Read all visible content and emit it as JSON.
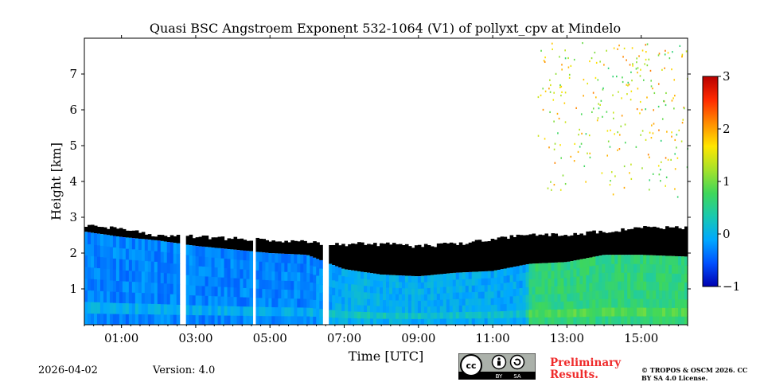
{
  "chart_data": {
    "type": "heatmap",
    "title": "Quasi BSC Angstroem Exponent 532-1064 (V1) of pollyxt_cpv at Mindelo",
    "xlabel": "Time [UTC]",
    "ylabel": "Height [km]",
    "xlim": [
      0.0,
      16.25
    ],
    "ylim": [
      0.0,
      8.0
    ],
    "x_ticks": [
      {
        "value": 1,
        "label": "01:00"
      },
      {
        "value": 3,
        "label": "03:00"
      },
      {
        "value": 5,
        "label": "05:00"
      },
      {
        "value": 7,
        "label": "07:00"
      },
      {
        "value": 9,
        "label": "09:00"
      },
      {
        "value": 11,
        "label": "11:00"
      },
      {
        "value": 13,
        "label": "13:00"
      },
      {
        "value": 15,
        "label": "15:00"
      }
    ],
    "y_ticks": [
      {
        "value": 1,
        "label": "1"
      },
      {
        "value": 2,
        "label": "2"
      },
      {
        "value": 3,
        "label": "3"
      },
      {
        "value": 4,
        "label": "4"
      },
      {
        "value": 5,
        "label": "5"
      },
      {
        "value": 6,
        "label": "6"
      },
      {
        "value": 7,
        "label": "7"
      }
    ],
    "colorbar": {
      "range": [
        -1,
        3
      ],
      "ticks": [
        {
          "value": 3,
          "label": "3"
        },
        {
          "value": 2,
          "label": "2"
        },
        {
          "value": 1,
          "label": "1"
        },
        {
          "value": 0,
          "label": "0"
        },
        {
          "value": -1,
          "label": "−1"
        }
      ],
      "colors": [
        "#0000b0",
        "#0050ff",
        "#00a8ff",
        "#19c9b0",
        "#3fd75a",
        "#a6e22a",
        "#ffe600",
        "#ff8c00",
        "#ff2a00",
        "#b80000"
      ]
    },
    "cloud_layer": {
      "top_height_km": [
        {
          "x": 0.0,
          "y": 2.8
        },
        {
          "x": 1.0,
          "y": 2.65
        },
        {
          "x": 2.0,
          "y": 2.5
        },
        {
          "x": 3.0,
          "y": 2.45
        },
        {
          "x": 4.0,
          "y": 2.4
        },
        {
          "x": 5.0,
          "y": 2.35
        },
        {
          "x": 6.0,
          "y": 2.3
        },
        {
          "x": 7.0,
          "y": 2.25
        },
        {
          "x": 8.0,
          "y": 2.25
        },
        {
          "x": 9.0,
          "y": 2.2
        },
        {
          "x": 10.0,
          "y": 2.25
        },
        {
          "x": 11.0,
          "y": 2.4
        },
        {
          "x": 12.0,
          "y": 2.5
        },
        {
          "x": 13.0,
          "y": 2.5
        },
        {
          "x": 14.0,
          "y": 2.6
        },
        {
          "x": 15.0,
          "y": 2.7
        },
        {
          "x": 16.25,
          "y": 2.7
        }
      ]
    },
    "boundary_layer": {
      "top_height_km": [
        {
          "x": 0.0,
          "y": 2.6
        },
        {
          "x": 1.0,
          "y": 2.45
        },
        {
          "x": 2.0,
          "y": 2.35
        },
        {
          "x": 3.0,
          "y": 2.2
        },
        {
          "x": 4.0,
          "y": 2.1
        },
        {
          "x": 5.0,
          "y": 2.0
        },
        {
          "x": 6.0,
          "y": 1.95
        },
        {
          "x": 7.0,
          "y": 1.55
        },
        {
          "x": 8.0,
          "y": 1.4
        },
        {
          "x": 9.0,
          "y": 1.35
        },
        {
          "x": 10.0,
          "y": 1.45
        },
        {
          "x": 11.0,
          "y": 1.5
        },
        {
          "x": 12.0,
          "y": 1.7
        },
        {
          "x": 13.0,
          "y": 1.75
        },
        {
          "x": 14.0,
          "y": 1.95
        },
        {
          "x": 15.0,
          "y": 1.95
        },
        {
          "x": 16.25,
          "y": 1.9
        }
      ],
      "angstrom_value": [
        {
          "x": 0.0,
          "y": -0.3
        },
        {
          "x": 6.0,
          "y": -0.3
        },
        {
          "x": 7.2,
          "y": 0.0
        },
        {
          "x": 11.9,
          "y": -0.1
        },
        {
          "x": 12.0,
          "y": 0.6
        },
        {
          "x": 16.25,
          "y": 0.6
        }
      ]
    },
    "data_gaps": [
      {
        "start": 2.55,
        "end": 2.7
      },
      {
        "start": 6.45,
        "end": 6.62
      },
      {
        "start": 6.8,
        "end": 6.87
      },
      {
        "start": 5.96,
        "end": 6.0
      },
      {
        "start": 4.55,
        "end": 4.6
      }
    ],
    "scattered_points_region": {
      "x_range": [
        12.2,
        16.25
      ],
      "y_range": [
        3.5,
        7.9
      ]
    }
  },
  "footer": {
    "date": "2026-04-02",
    "version": "Version: 4.0",
    "preliminary": "Preliminary Results.",
    "copyright": "© TROPOS & OSCM 2026. CC BY SA 4.0 License.",
    "license_badge": {
      "by": "BY",
      "sa": "SA"
    }
  }
}
